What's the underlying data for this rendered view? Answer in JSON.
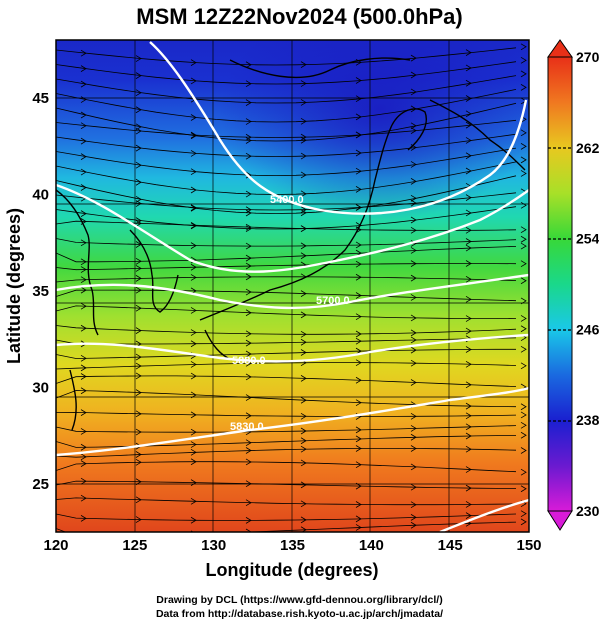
{
  "title": "MSM 12Z22Nov2024 (500.0hPa)",
  "map": {
    "lon_range": [
      120,
      150
    ],
    "lat_range": [
      22.5,
      48
    ],
    "xticks": [
      "120",
      "125",
      "130",
      "135",
      "140",
      "145",
      "150"
    ],
    "yticks": [
      "25",
      "30",
      "35",
      "40",
      "45"
    ],
    "xlabel": "Longitude (degrees)",
    "ylabel": "Latitude  (degrees)",
    "contour_labels": [
      "5400.0",
      "5640.0",
      "5700.0",
      "5880.0",
      "5830.0"
    ],
    "colorbar": {
      "min": 230,
      "max": 270,
      "tick_labels": [
        "270",
        "262",
        "254",
        "246",
        "238",
        "230"
      ],
      "colors": [
        "#d81bd8",
        "#1a1ad8",
        "#1a8ae8",
        "#1ad8d8",
        "#1ad88a",
        "#38d838",
        "#a8e028",
        "#e8d820",
        "#f0a020",
        "#f07020",
        "#e83018"
      ]
    }
  },
  "credits": {
    "line1": "Drawing by DCL (https://www.gfd-dennou.org/library/dcl/)",
    "line2": "Data from http://database.rish.kyoto-u.ac.jp/arch/jmadata/"
  }
}
